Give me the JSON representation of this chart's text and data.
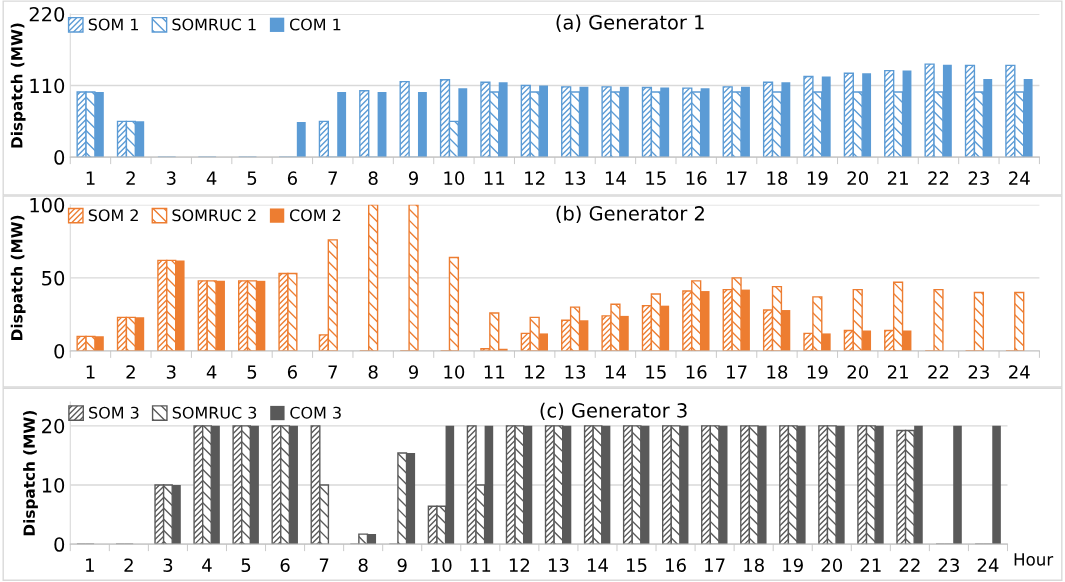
{
  "chart_data": [
    {
      "type": "bar",
      "title": "(a) Generator 1",
      "ylabel": "Dispatch (MW)",
      "categories": [
        "1",
        "2",
        "3",
        "4",
        "5",
        "6",
        "7",
        "8",
        "9",
        "10",
        "11",
        "12",
        "13",
        "14",
        "15",
        "16",
        "17",
        "18",
        "19",
        "20",
        "21",
        "22",
        "23",
        "24"
      ],
      "ylim": [
        0,
        220
      ],
      "yticks": [
        0,
        110,
        220
      ],
      "grid": "y",
      "legend": "top left",
      "series": [
        {
          "name": "SOM 1",
          "color": "#5b9bd5",
          "values": [
            100,
            55,
            0,
            0,
            0,
            0,
            55,
            102,
            116,
            119,
            115,
            110,
            108,
            108,
            107,
            106,
            108,
            115,
            124,
            129,
            133,
            143,
            141,
            141
          ]
        },
        {
          "name": "SOMRUC 1",
          "color": "#5b9bd5",
          "values": [
            100,
            55,
            0,
            0,
            0,
            0,
            0,
            0,
            0,
            55,
            100,
            100,
            100,
            100,
            100,
            100,
            100,
            100,
            100,
            100,
            100,
            100,
            100,
            100
          ]
        },
        {
          "name": "COM 1",
          "color": "#5b9bd5",
          "values": [
            100,
            55,
            0,
            0,
            0,
            54,
            100,
            100,
            100,
            106,
            115,
            110,
            108,
            108,
            107,
            106,
            108,
            115,
            124,
            129,
            133,
            142,
            120,
            120
          ]
        }
      ]
    },
    {
      "type": "bar",
      "title": "(b) Generator 2",
      "ylabel": "Dispatch (MW)",
      "categories": [
        "1",
        "2",
        "3",
        "4",
        "5",
        "6",
        "7",
        "8",
        "9",
        "10",
        "11",
        "12",
        "13",
        "14",
        "15",
        "16",
        "17",
        "18",
        "19",
        "20",
        "21",
        "22",
        "23",
        "24"
      ],
      "ylim": [
        0,
        100
      ],
      "yticks": [
        0,
        50,
        100
      ],
      "grid": "y",
      "legend": "top left",
      "series": [
        {
          "name": "SOM 2",
          "color": "#ed7d31",
          "values": [
            10,
            23,
            62,
            48,
            48,
            53,
            11,
            0,
            0,
            0,
            1.5,
            12,
            21,
            24,
            31,
            41,
            42,
            28,
            12,
            14,
            14,
            0,
            0,
            0
          ]
        },
        {
          "name": "SOMRUC 2",
          "color": "#ed7d31",
          "values": [
            10,
            23,
            62,
            48,
            48,
            53,
            76,
            100,
            100,
            64,
            26,
            23,
            30,
            32,
            39,
            48,
            50,
            44,
            37,
            42,
            47,
            42,
            40,
            40
          ]
        },
        {
          "name": "COM 2",
          "color": "#ed7d31",
          "values": [
            10,
            23,
            62,
            48,
            48,
            0,
            0,
            0,
            0,
            0,
            1.5,
            12,
            21,
            24,
            31,
            41,
            42,
            28,
            12,
            14,
            14,
            0,
            0,
            0
          ]
        }
      ]
    },
    {
      "type": "bar",
      "title": "(c) Generator 3",
      "ylabel": "Dispatch (MW)",
      "xlabel": "Hour",
      "categories": [
        "1",
        "2",
        "3",
        "4",
        "5",
        "6",
        "7",
        "8",
        "9",
        "10",
        "11",
        "12",
        "13",
        "14",
        "15",
        "16",
        "17",
        "18",
        "19",
        "20",
        "21",
        "22",
        "23",
        "24"
      ],
      "ylim": [
        0,
        24
      ],
      "yticks": [
        0,
        10,
        20
      ],
      "grid": "y",
      "legend": "top left",
      "series": [
        {
          "name": "SOM 3",
          "color": "#595959",
          "values": [
            0,
            0,
            10,
            20,
            20,
            20,
            20,
            0,
            0,
            6.4,
            20,
            20,
            20,
            20,
            20,
            20,
            20,
            20,
            20,
            20,
            20,
            19.2,
            0,
            0
          ]
        },
        {
          "name": "SOMRUC 3",
          "color": "#595959",
          "values": [
            0,
            0,
            10,
            20,
            20,
            20,
            10,
            1.7,
            15.4,
            6.4,
            10,
            20,
            20,
            20,
            20,
            20,
            20,
            20,
            20,
            20,
            20,
            19.2,
            0,
            0
          ]
        },
        {
          "name": "COM 3",
          "color": "#595959",
          "values": [
            0,
            0,
            10,
            20,
            20,
            20,
            0,
            1.7,
            15.4,
            20,
            20,
            20,
            20,
            20,
            20,
            20,
            20,
            20,
            20,
            20,
            20,
            20,
            20,
            20
          ]
        }
      ]
    }
  ]
}
